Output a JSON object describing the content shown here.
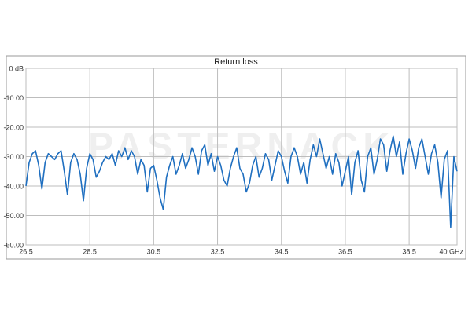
{
  "chart_data": {
    "type": "line",
    "title": "Return loss",
    "watermark": "PASTERNACK",
    "x": [
      26.5,
      26.6,
      26.7,
      26.8,
      26.9,
      27.0,
      27.1,
      27.2,
      27.3,
      27.4,
      27.5,
      27.6,
      27.7,
      27.8,
      27.9,
      28.0,
      28.1,
      28.2,
      28.3,
      28.4,
      28.5,
      28.6,
      28.7,
      28.8,
      28.9,
      29.0,
      29.1,
      29.2,
      29.3,
      29.4,
      29.5,
      29.6,
      29.7,
      29.8,
      29.9,
      30.0,
      30.1,
      30.2,
      30.3,
      30.4,
      30.5,
      30.6,
      30.7,
      30.8,
      30.9,
      31.0,
      31.1,
      31.2,
      31.3,
      31.4,
      31.5,
      31.6,
      31.7,
      31.8,
      31.9,
      32.0,
      32.1,
      32.2,
      32.3,
      32.4,
      32.5,
      32.6,
      32.7,
      32.8,
      32.9,
      33.0,
      33.1,
      33.2,
      33.3,
      33.4,
      33.5,
      33.6,
      33.7,
      33.8,
      33.9,
      34.0,
      34.1,
      34.2,
      34.3,
      34.4,
      34.5,
      34.6,
      34.7,
      34.8,
      34.9,
      35.0,
      35.1,
      35.2,
      35.3,
      35.4,
      35.5,
      35.6,
      35.7,
      35.8,
      35.9,
      36.0,
      36.1,
      36.2,
      36.3,
      36.4,
      36.5,
      36.6,
      36.7,
      36.8,
      36.9,
      37.0,
      37.1,
      37.2,
      37.3,
      37.4,
      37.5,
      37.6,
      37.7,
      37.8,
      37.9,
      38.0,
      38.1,
      38.2,
      38.3,
      38.4,
      38.5,
      38.6,
      38.7,
      38.8,
      38.9,
      39.0,
      39.1,
      39.2,
      39.3,
      39.4,
      39.5,
      39.6,
      39.7,
      39.8,
      39.9,
      40.0
    ],
    "series": [
      {
        "name": "Return loss",
        "color": "#1f6fc0",
        "values": [
          -40,
          -32,
          -29,
          -28,
          -33,
          -41,
          -32,
          -29,
          -30,
          -31,
          -29,
          -28,
          -35,
          -43,
          -32,
          -29,
          -31,
          -36,
          -45,
          -34,
          -29,
          -31,
          -37,
          -35,
          -32,
          -30,
          -31,
          -29,
          -33,
          -28,
          -30,
          -27,
          -31,
          -28,
          -30,
          -36,
          -31,
          -33,
          -42,
          -34,
          -33,
          -38,
          -44,
          -48,
          -37,
          -33,
          -30,
          -36,
          -33,
          -29,
          -34,
          -31,
          -27,
          -30,
          -36,
          -28,
          -26,
          -33,
          -29,
          -35,
          -30,
          -33,
          -38,
          -40,
          -34,
          -30,
          -27,
          -34,
          -36,
          -42,
          -39,
          -33,
          -30,
          -37,
          -34,
          -29,
          -31,
          -38,
          -33,
          -28,
          -30,
          -35,
          -39,
          -30,
          -27,
          -30,
          -36,
          -32,
          -39,
          -31,
          -26,
          -30,
          -24,
          -29,
          -34,
          -30,
          -36,
          -29,
          -32,
          -40,
          -35,
          -30,
          -43,
          -32,
          -28,
          -38,
          -42,
          -30,
          -27,
          -36,
          -31,
          -24,
          -26,
          -35,
          -28,
          -23,
          -30,
          -25,
          -36,
          -29,
          -24,
          -28,
          -34,
          -27,
          -24,
          -30,
          -36,
          -29,
          -26,
          -32,
          -44,
          -31,
          -28,
          -54,
          -30,
          -35
        ]
      }
    ],
    "xlim": [
      26.5,
      40
    ],
    "xticks": [
      26.5,
      28.5,
      30.5,
      32.5,
      34.5,
      36.5,
      38.5,
      {
        "value": 40,
        "label": "40 GHz"
      }
    ],
    "ylim": [
      -60,
      0
    ],
    "yticks": [
      {
        "value": 0,
        "label": "0 dB"
      },
      {
        "value": -10,
        "label": "-10.00"
      },
      {
        "value": -20,
        "label": "-20.00"
      },
      {
        "value": -30,
        "label": "-30.00"
      },
      {
        "value": -40,
        "label": "-40.00"
      },
      {
        "value": -50,
        "label": "-50.00"
      },
      {
        "value": -60,
        "label": "-60.00"
      }
    ],
    "grid": true
  }
}
